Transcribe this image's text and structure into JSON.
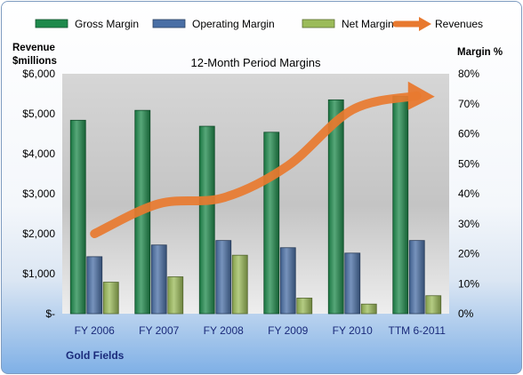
{
  "chart_data": {
    "type": "bar",
    "title": "12-Month Period Margins",
    "categories": [
      "FY 2006",
      "FY 2007",
      "FY 2008",
      "FY 2009",
      "FY 2010",
      "TTM 6-2011"
    ],
    "series": [
      {
        "name": "Gross Margin",
        "type": "bar",
        "axis": "right",
        "color": "#1f8a4c",
        "values": [
          64.5,
          67.8,
          62.5,
          60.5,
          71.3,
          72.5
        ]
      },
      {
        "name": "Operating Margin",
        "type": "bar",
        "axis": "right",
        "color": "#4a6fa5",
        "values": [
          19.0,
          22.9,
          24.4,
          22.0,
          20.2,
          24.4
        ]
      },
      {
        "name": "Net Margin",
        "type": "bar",
        "axis": "right",
        "color": "#9bbb59",
        "values": [
          10.5,
          12.3,
          19.5,
          5.2,
          3.2,
          6.0
        ]
      },
      {
        "name": "Revenues",
        "type": "line",
        "axis": "left",
        "color": "#e8792f",
        "values": [
          2000,
          2750,
          2900,
          3700,
          5100,
          5450
        ]
      }
    ],
    "y_left": {
      "label": [
        "Revenue",
        "$millions"
      ],
      "ylim": [
        0,
        6000
      ],
      "ticks": [
        "$-",
        "$1,000",
        "$2,000",
        "$3,000",
        "$4,000",
        "$5,000",
        "$6,000"
      ]
    },
    "y_right": {
      "label": "Margin %",
      "ylim": [
        0,
        80
      ],
      "ticks": [
        "0%",
        "10%",
        "20%",
        "30%",
        "40%",
        "50%",
        "60%",
        "70%",
        "80%"
      ]
    },
    "legend_position": "top",
    "grid": false,
    "footer": "Gold Fields"
  }
}
